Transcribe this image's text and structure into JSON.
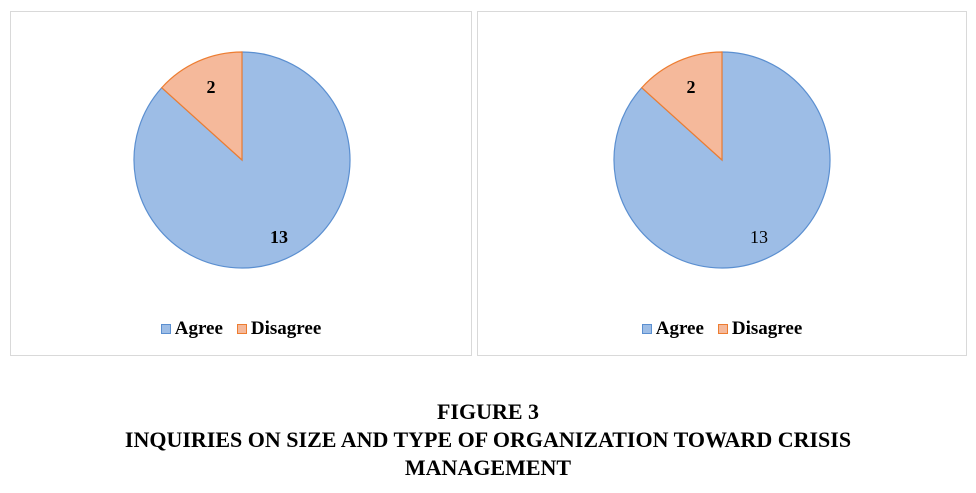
{
  "figure": {
    "number": "FIGURE 3",
    "title_line1": "INQUIRIES ON SIZE AND TYPE OF ORGANIZATION TOWARD CRISIS",
    "title_line2": "MANAGEMENT"
  },
  "colors": {
    "agree_fill": "#9dbde6",
    "agree_stroke": "#5b8fd0",
    "disagree_fill": "#f5b99b",
    "disagree_stroke": "#ed7d31"
  },
  "chart_data": [
    {
      "type": "pie",
      "categories": [
        "Agree",
        "Disagree"
      ],
      "values": [
        13,
        2
      ],
      "data_labels": [
        "13",
        "2"
      ],
      "label_weight": "bold",
      "legend": [
        "Agree",
        "Disagree"
      ],
      "legend_position": "bottom"
    },
    {
      "type": "pie",
      "categories": [
        "Agree",
        "Disagree"
      ],
      "values": [
        13,
        2
      ],
      "data_labels": [
        "13",
        "2"
      ],
      "label_weight": "mixed",
      "legend": [
        "Agree",
        "Disagree"
      ],
      "legend_position": "bottom"
    }
  ]
}
